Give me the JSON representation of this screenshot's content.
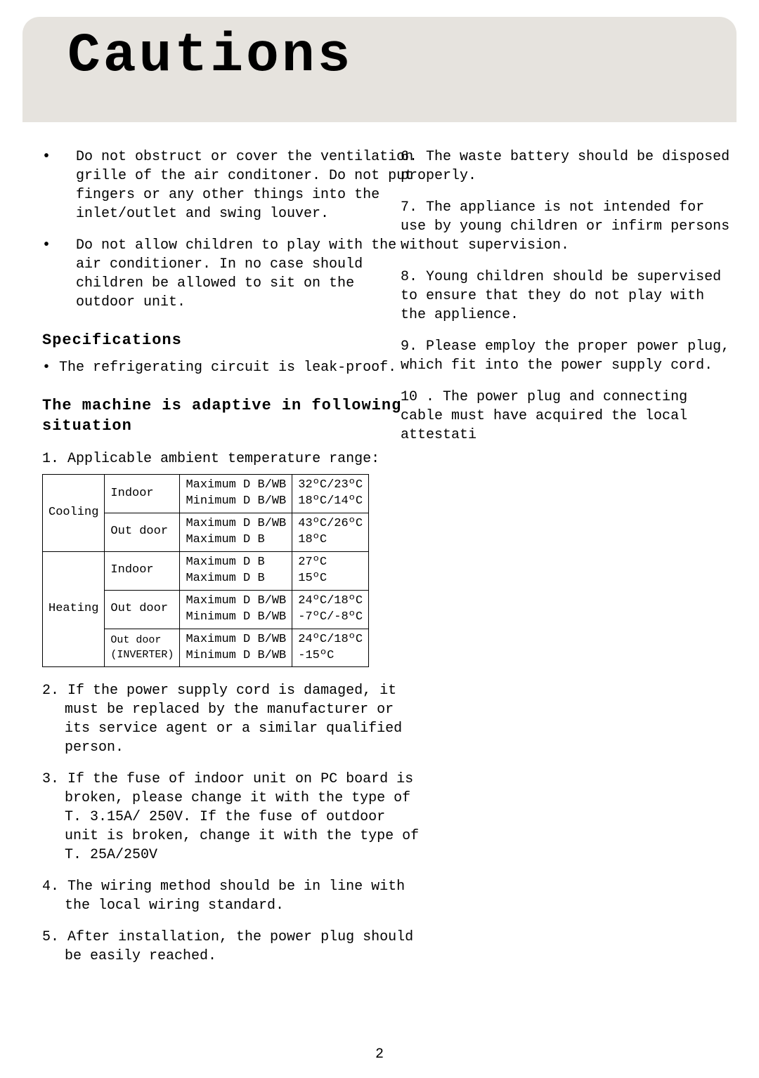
{
  "header": {
    "title": "Cautions"
  },
  "left": {
    "bullet1": "Do not obstruct or cover the ventilation grille of the air conditoner. Do not put fingers or any other things into the inlet/outlet and swing louver.",
    "bullet2": "Do not allow children to play with the air conditioner. In no case should children be allowed to sit on the outdoor unit.",
    "spec_title": "Specifications",
    "spec_line": "• The refrigerating circuit is leak-proof.",
    "adaptive_title": "The machine is adaptive in following situation",
    "note1_label": "1. Applicable ambient temperature range:",
    "table": {
      "rows": [
        {
          "g": "Cooling",
          "loc": "Indoor",
          "l1": "Maximum D B/WB",
          "v1": "32ºC/23ºC",
          "l2": "Minimum D B/WB",
          "v2": "18ºC/14ºC"
        },
        {
          "g": "Cooling",
          "loc": "Out door",
          "l1": "Maximum D B/WB",
          "v1": "43ºC/26ºC",
          "l2": "Maximum D B",
          "v2": "18ºC"
        },
        {
          "g": "Heating",
          "loc": "Indoor",
          "l1": "Maximum D B",
          "v1": "27ºC",
          "l2": "Maximum D B",
          "v2": "15ºC"
        },
        {
          "g": "Heating",
          "loc": "Out door",
          "l1": "Maximum D B/WB",
          "v1": "24ºC/18ºC",
          "l2": "Minimum D B/WB",
          "v2": "-7ºC/-8ºC"
        },
        {
          "g": "Heating",
          "loc": "Out door\n(INVERTER)",
          "l1": "Maximum D B/WB",
          "v1": "24ºC/18ºC",
          "l2": "Minimum D B/WB",
          "v2": "-15ºC"
        }
      ]
    },
    "n2": "2. If the power supply cord is damaged, it must be replaced by the manufacturer or its service agent or a similar qualified person.",
    "n3": "3. If the fuse of indoor unit on PC board is broken, please change it with the type of T. 3.15A/ 250V. If the fuse of outdoor unit is broken, change it with the type of T. 25A/250V",
    "n4": "4. The wiring method should be in line with the local wiring standard.",
    "n5": "5. After installation, the power plug should be easily reached."
  },
  "right": {
    "r6": "6. The waste battery should be disposed properly.",
    "r7": "7. The appliance is not intended for use by young children or infirm persons without supervision.",
    "r8": "8. Young children should be supervised to ensure that they do not play with the applience.",
    "r9": "9. Please employ the proper power plug, which fit into the power supply cord.",
    "r10": "10 . The power plug and connecting cable must have acquired the local attestati"
  },
  "page_number": "2",
  "colors": {
    "band": "#e6e3de",
    "text": "#000000",
    "bg": "#ffffff"
  }
}
